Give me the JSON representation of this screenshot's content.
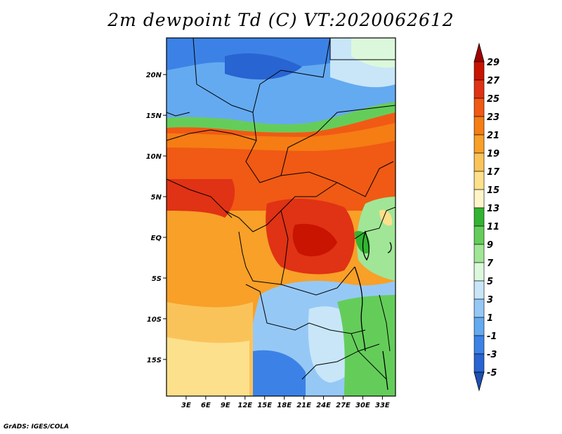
{
  "title": "2m dewpoint Td (C) VT:2020062612",
  "credit": "GrADS: IGES/COLA",
  "map": {
    "lat_ticks": [
      "20N",
      "15N",
      "10N",
      "5N",
      "EQ",
      "5S",
      "10S",
      "15S"
    ],
    "lat_values": [
      20,
      15,
      10,
      5,
      0,
      -5,
      -10,
      -15
    ],
    "lon_ticks": [
      "3E",
      "6E",
      "9E",
      "12E",
      "15E",
      "18E",
      "21E",
      "24E",
      "27E",
      "30E",
      "33E"
    ],
    "lon_values": [
      3,
      6,
      9,
      12,
      15,
      18,
      21,
      24,
      27,
      30,
      33
    ],
    "lon_range": [
      0,
      35
    ],
    "lat_range": [
      -19.5,
      24.5
    ]
  },
  "colorbar": {
    "labels": [
      "29",
      "27",
      "25",
      "23",
      "21",
      "19",
      "17",
      "15",
      "13",
      "11",
      "9",
      "7",
      "5",
      "3",
      "1",
      "-1",
      "-3",
      "-5"
    ],
    "colors": [
      "#a00000",
      "#c81400",
      "#e03214",
      "#f05a14",
      "#f57d14",
      "#f8a028",
      "#fac35a",
      "#fde08c",
      "#fff5c8",
      "#32b432",
      "#64cd5a",
      "#a0e696",
      "#dcf8dc",
      "#c8e6f8",
      "#96c8f5",
      "#64aaf0",
      "#3c82e6",
      "#2864d2",
      "#1e50b4"
    ]
  }
}
